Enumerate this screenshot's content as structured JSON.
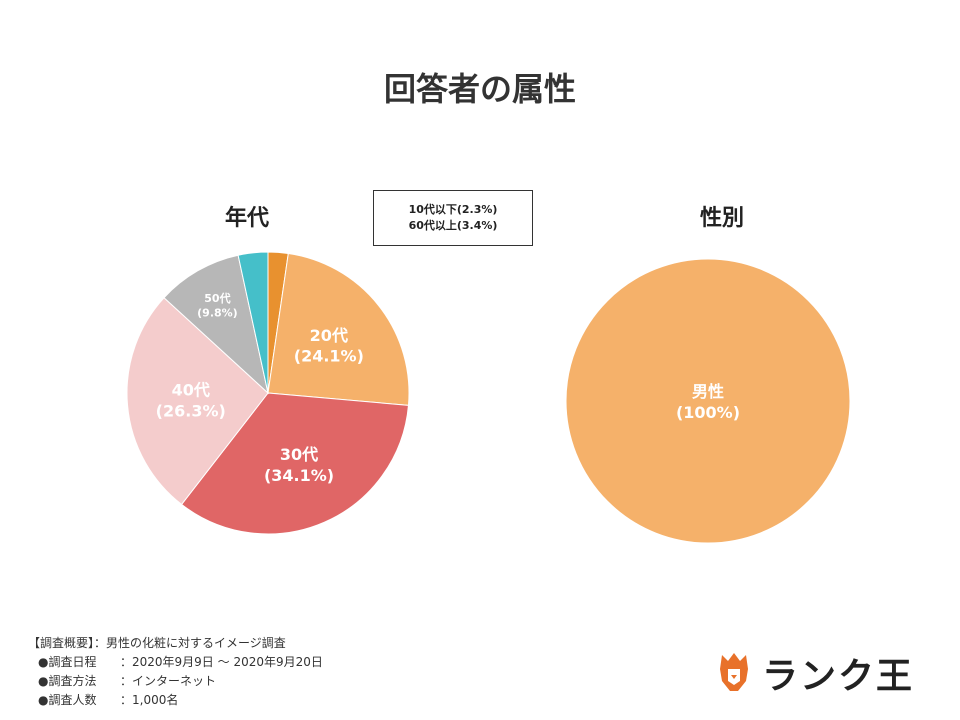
{
  "title": "回答者の属性",
  "callout": {
    "line1": "10代以下(2.3%)",
    "line2": "60代以上(3.4%)"
  },
  "chart_data": [
    {
      "type": "pie",
      "title": "年代",
      "slices": [
        {
          "label": "10代以下",
          "pct_text": "(2.3%)",
          "value": 2.3,
          "color": "#E8912F"
        },
        {
          "label": "20代",
          "pct_text": "(24.1%)",
          "value": 24.1,
          "color": "#F5B16A"
        },
        {
          "label": "30代",
          "pct_text": "(34.1%)",
          "value": 34.1,
          "color": "#E06666"
        },
        {
          "label": "40代",
          "pct_text": "(26.3%)",
          "value": 26.3,
          "color": "#F4CCCC"
        },
        {
          "label": "50代",
          "pct_text": "(9.8%)",
          "value": 9.8,
          "color": "#B7B7B7"
        },
        {
          "label": "60代以上",
          "pct_text": "(3.4%)",
          "value": 3.4,
          "color": "#45BFC9"
        }
      ]
    },
    {
      "type": "pie",
      "title": "性別",
      "slices": [
        {
          "label": "男性",
          "pct_text": "(100%)",
          "value": 100,
          "color": "#F5B16A"
        }
      ]
    }
  ],
  "footer": {
    "summary_key": "【調査概要】",
    "summary_val": "：男性の化粧に対するイメージ調査",
    "rows": [
      {
        "key": "●調査日程",
        "val": "：2020年9月9日 〜 2020年9月20日"
      },
      {
        "key": "●調査方法",
        "val": "：インターネット"
      },
      {
        "key": "●調査人数",
        "val": "：1,000名"
      }
    ]
  },
  "logo": {
    "text": "ランク王",
    "accent": "#E8712A"
  }
}
